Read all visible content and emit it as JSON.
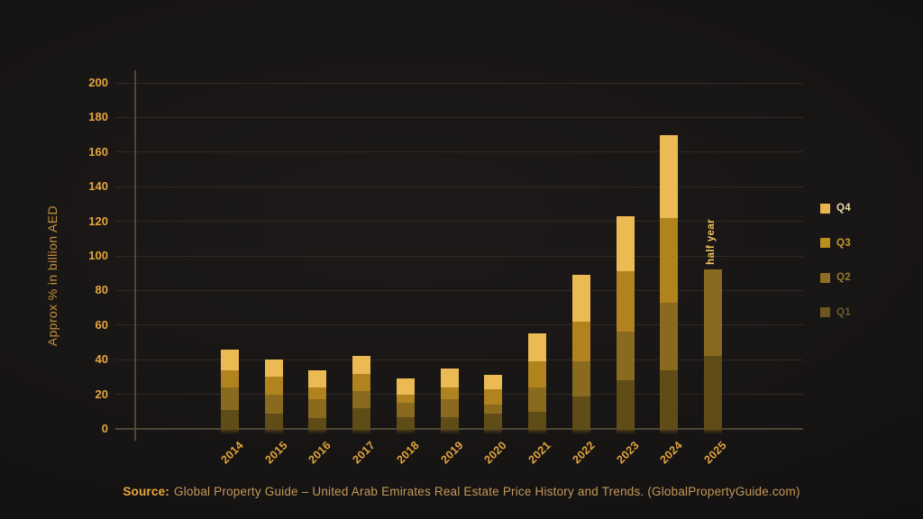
{
  "chart_data": {
    "type": "bar",
    "stacked": true,
    "title": "",
    "xlabel": "",
    "ylabel": "Approx % in billion AED",
    "ylim": [
      0,
      200
    ],
    "ytick_step": 20,
    "yticks": [
      0,
      20,
      40,
      60,
      80,
      100,
      120,
      140,
      160,
      180,
      200
    ],
    "grid": true,
    "categories": [
      "2014",
      "2015",
      "2016",
      "2017",
      "2018",
      "2019",
      "2020",
      "2021",
      "2022",
      "2023",
      "2024",
      "2025"
    ],
    "series": [
      {
        "name": "Q1",
        "color": "#5f4c16",
        "values": [
          11,
          9,
          6,
          12,
          7,
          7,
          9,
          10,
          19,
          28,
          34,
          42
        ]
      },
      {
        "name": "Q2",
        "color": "#8a6a1e",
        "values": [
          13,
          11,
          11,
          10,
          8,
          10,
          5,
          14,
          20,
          28,
          39,
          50
        ]
      },
      {
        "name": "Q3",
        "color": "#b0831f",
        "values": [
          10,
          10,
          7,
          10,
          5,
          7,
          9,
          15,
          23,
          35,
          49,
          0
        ]
      },
      {
        "name": "Q4",
        "color": "#ecba52",
        "values": [
          12,
          10,
          10,
          10,
          9,
          11,
          8,
          16,
          27,
          32,
          48,
          0
        ]
      }
    ],
    "totals": [
      46,
      40,
      34,
      42,
      29,
      35,
      31,
      55,
      89,
      123,
      170,
      92
    ],
    "annotations": [
      {
        "category": "2025",
        "text": "half year"
      }
    ],
    "legend_position": "right"
  },
  "legend": {
    "items": [
      {
        "label": "Q4",
        "swatch": "#e8b44c",
        "text_color": "#efd9a6"
      },
      {
        "label": "Q3",
        "swatch": "#bc8d1f",
        "text_color": "#cd9a2e"
      },
      {
        "label": "Q2",
        "swatch": "#8f6e24",
        "text_color": "#9c792c"
      },
      {
        "label": "Q1",
        "swatch": "#6d5720",
        "text_color": "#6f5b27"
      }
    ]
  },
  "footer": {
    "source_label": "Source:",
    "source_text": "Global Property Guide – United Arab Emirates Real Estate Price History and Trends. (GlobalPropertyGuide.com)"
  },
  "theme": {
    "background_center": "#1d1a19",
    "background_edge": "#0b0909",
    "gridline": "#2f2a23",
    "axis_line": "#4e4736",
    "tick_label": "#e5a63e",
    "axis_title": "#c5923c",
    "annotation": "#f1c45c"
  }
}
